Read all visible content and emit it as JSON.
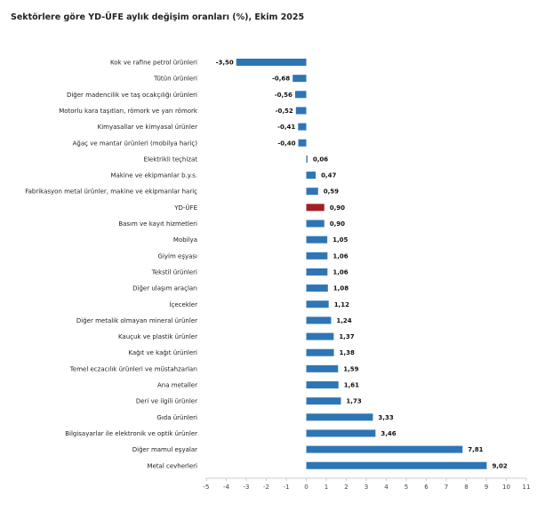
{
  "chart_data": {
    "type": "bar",
    "orientation": "horizontal",
    "title": "Sektörlere göre YD-ÜFE aylık değişim oranları (%), Ekim 2025",
    "xlabel": "",
    "ylabel": "",
    "xlim": [
      -5,
      11
    ],
    "xticks": [
      -5,
      -4,
      -3,
      -2,
      -1,
      0,
      1,
      2,
      3,
      4,
      5,
      6,
      7,
      8,
      9,
      10,
      11
    ],
    "categories": [
      "Kok ve rafine petrol ürünleri",
      "Tütün ürünleri",
      "Diğer madencilik ve taş ocakçılığı ürünleri",
      "Motorlu kara taşıtları, römork ve yarı römork",
      "Kimyasallar ve kimyasal ürünler",
      "Ağaç ve mantar ürünleri (mobilya hariç)",
      "Elektrikli teçhizat",
      "Makine ve ekipmanlar b.y.s.",
      "Fabrikasyon metal ürünler, makine ve ekipmanlar hariç",
      "YD-ÜFE",
      "Basım ve kayıt hizmetleri",
      "Mobilya",
      "Giyim eşyası",
      "Tekstil ürünleri",
      "Diğer ulaşım araçları",
      "İçecekler",
      "Diğer metalik olmayan mineral ürünler",
      "Kauçuk ve plastik ürünler",
      "Kağıt ve kağıt ürünleri",
      "Temel eczacılık ürünleri ve müstahzarları",
      "Ana metaller",
      "Deri ve ilgili ürünler",
      "Gıda ürünleri",
      "Bilgisayarlar ile elektronik ve optik ürünler",
      "Diğer mamul eşyalar",
      "Metal cevherleri"
    ],
    "values": [
      -3.5,
      -0.68,
      -0.56,
      -0.52,
      -0.41,
      -0.4,
      0.06,
      0.47,
      0.59,
      0.9,
      0.9,
      1.05,
      1.06,
      1.06,
      1.08,
      1.12,
      1.24,
      1.37,
      1.38,
      1.59,
      1.61,
      1.73,
      3.33,
      3.46,
      7.81,
      9.02
    ],
    "value_labels": [
      "-3,50",
      "-0,68",
      "-0,56",
      "-0,52",
      "-0,41",
      "-0,40",
      "0,06",
      "0,47",
      "0,59",
      "0,90",
      "0,90",
      "1,05",
      "1,06",
      "1,06",
      "1,08",
      "1,12",
      "1,24",
      "1,37",
      "1,38",
      "1,59",
      "1,61",
      "1,73",
      "3,33",
      "3,46",
      "7,81",
      "9,02"
    ],
    "highlight_category": "YD-ÜFE",
    "colors": {
      "bar": "#2e75b6",
      "highlight": "#a31f24"
    }
  }
}
